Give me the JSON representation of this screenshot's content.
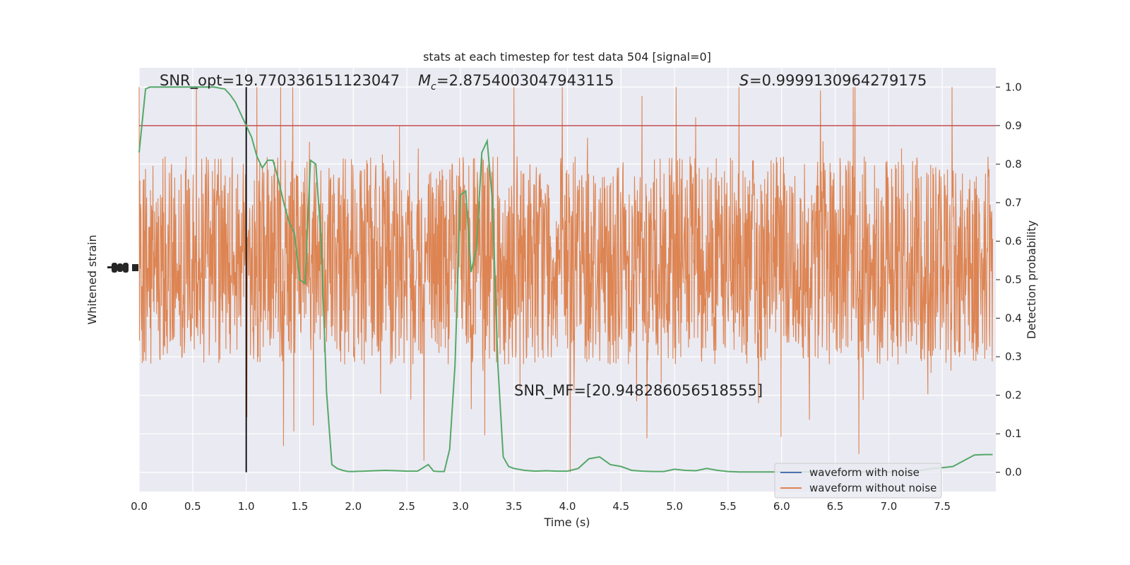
{
  "chart_data": {
    "type": "line",
    "title": "stats at each timestep for test data 504 [signal=0]",
    "xlabel": "Time (s)",
    "ylabel_left": "Whitened strain",
    "ylabel_right": "Detection probability",
    "xlim": [
      0.0,
      8.0
    ],
    "ylim_right": [
      -0.05,
      1.05
    ],
    "xticks": [
      "0.0",
      "0.5",
      "1.0",
      "1.5",
      "2.0",
      "2.5",
      "3.0",
      "3.5",
      "4.0",
      "4.5",
      "5.0",
      "5.5",
      "6.0",
      "6.5",
      "7.0",
      "7.5"
    ],
    "yticks_right": [
      "0.0",
      "0.1",
      "0.2",
      "0.3",
      "0.4",
      "0.5",
      "0.6",
      "0.7",
      "0.8",
      "0.9",
      "1.0"
    ],
    "grid": true,
    "threshold": 0.9,
    "event_time": 1.0,
    "annotations": {
      "snr_opt": "SNR_opt=19.770336151123047",
      "mc": "=2.8754003047943115",
      "s": "=0.9999130964279175",
      "snr_mf": "SNR_MF=[20.948286056518555]"
    },
    "legend": {
      "position": "lower-right",
      "entries": [
        "waveform with noise",
        "waveform without noise"
      ]
    },
    "series": [
      {
        "name": "detection-probability",
        "x": [
          0.0,
          0.06,
          0.1,
          0.2,
          0.3,
          0.4,
          0.5,
          0.6,
          0.7,
          0.8,
          0.85,
          0.9,
          0.95,
          1.0,
          1.05,
          1.1,
          1.15,
          1.2,
          1.25,
          1.3,
          1.35,
          1.4,
          1.45,
          1.5,
          1.55,
          1.6,
          1.65,
          1.7,
          1.75,
          1.8,
          1.85,
          1.9,
          1.95,
          2.0,
          2.1,
          2.2,
          2.3,
          2.4,
          2.5,
          2.6,
          2.7,
          2.75,
          2.8,
          2.85,
          2.9,
          2.95,
          3.0,
          3.05,
          3.1,
          3.15,
          3.2,
          3.25,
          3.3,
          3.35,
          3.4,
          3.45,
          3.5,
          3.6,
          3.7,
          3.8,
          3.9,
          4.0,
          4.1,
          4.2,
          4.3,
          4.4,
          4.5,
          4.6,
          4.7,
          4.8,
          4.9,
          5.0,
          5.1,
          5.2,
          5.3,
          5.4,
          5.5,
          5.6,
          5.7,
          5.8,
          5.9,
          6.0,
          6.1,
          6.2,
          6.3,
          6.4,
          6.5,
          6.6,
          6.7,
          6.8,
          6.9,
          7.0,
          7.1,
          7.2,
          7.3,
          7.4,
          7.5,
          7.6,
          7.7,
          7.8,
          7.9,
          7.97
        ],
        "values": [
          0.83,
          0.995,
          1.0,
          1.0,
          1.0,
          1.0,
          1.0,
          1.0,
          1.0,
          0.995,
          0.98,
          0.96,
          0.93,
          0.9,
          0.87,
          0.82,
          0.79,
          0.81,
          0.81,
          0.76,
          0.7,
          0.65,
          0.62,
          0.5,
          0.49,
          0.81,
          0.8,
          0.6,
          0.21,
          0.02,
          0.01,
          0.005,
          0.002,
          0.002,
          0.003,
          0.004,
          0.005,
          0.004,
          0.003,
          0.003,
          0.02,
          0.003,
          0.002,
          0.002,
          0.06,
          0.28,
          0.72,
          0.73,
          0.52,
          0.58,
          0.83,
          0.86,
          0.7,
          0.28,
          0.04,
          0.015,
          0.01,
          0.005,
          0.003,
          0.004,
          0.003,
          0.003,
          0.01,
          0.035,
          0.04,
          0.02,
          0.015,
          0.005,
          0.003,
          0.002,
          0.002,
          0.008,
          0.005,
          0.004,
          0.01,
          0.005,
          0.002,
          0.001,
          0.001,
          0.001,
          0.001,
          0.001,
          0.001,
          0.001,
          0.001,
          0.001,
          0.001,
          0.001,
          0.001,
          0.001,
          0.001,
          0.001,
          0.001,
          0.001,
          0.005,
          0.01,
          0.012,
          0.015,
          0.03,
          0.045,
          0.046,
          0.046
        ]
      }
    ],
    "strain_band_probability_equivalent": [
      0.28,
      0.82
    ],
    "colors": {
      "plot_bg": "#eaeaf2",
      "grid": "#ffffff",
      "noise_waveform": "#4c72b0",
      "clean_waveform": "#dd8452",
      "probability_line": "#55a868",
      "threshold_line": "#c44e52",
      "event_line": "#000000"
    }
  }
}
